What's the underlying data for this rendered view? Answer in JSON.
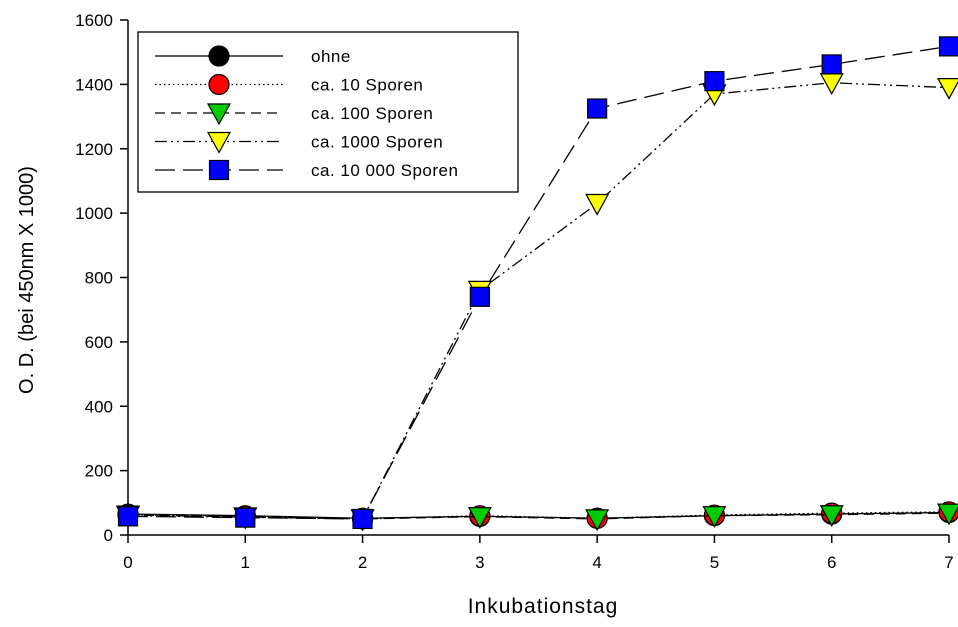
{
  "chart_data": {
    "type": "line",
    "title": "",
    "xlabel": "Inkubationstag",
    "ylabel": "O. D. (bei 450nm X 1000)",
    "xlim": [
      0,
      7
    ],
    "ylim": [
      0,
      1600
    ],
    "xticks": [
      0,
      1,
      2,
      3,
      4,
      5,
      6,
      7
    ],
    "yticks": [
      0,
      200,
      400,
      600,
      800,
      1000,
      1200,
      1400,
      1600
    ],
    "grid": false,
    "legend_position": "top-left",
    "x": [
      0,
      1,
      2,
      3,
      4,
      5,
      6,
      7
    ],
    "series": [
      {
        "name": "ohne",
        "values": [
          65,
          60,
          52,
          58,
          52,
          60,
          65,
          70
        ],
        "marker": "circle",
        "marker_color": "#000000",
        "dash": "solid"
      },
      {
        "name": "ca. 10 Sporen",
        "values": [
          63,
          58,
          50,
          60,
          52,
          62,
          68,
          72
        ],
        "marker": "circle",
        "marker_color": "#ff0000",
        "dash": "dotted"
      },
      {
        "name": "ca. 100 Sporen",
        "values": [
          62,
          56,
          50,
          57,
          50,
          60,
          63,
          68
        ],
        "marker": "triangle-down",
        "marker_color": "#00cc00",
        "dash": "dashed"
      },
      {
        "name": "ca. 1000 Sporen",
        "values": [
          60,
          55,
          50,
          760,
          1030,
          1370,
          1405,
          1390
        ],
        "marker": "triangle-down",
        "marker_color": "#ffff00",
        "dash": "dash-dot-dot"
      },
      {
        "name": "ca. 10 000 Sporen",
        "values": [
          58,
          54,
          50,
          740,
          1325,
          1410,
          1462,
          1518
        ],
        "marker": "square",
        "marker_color": "#0000ff",
        "dash": "long-dash"
      }
    ]
  }
}
